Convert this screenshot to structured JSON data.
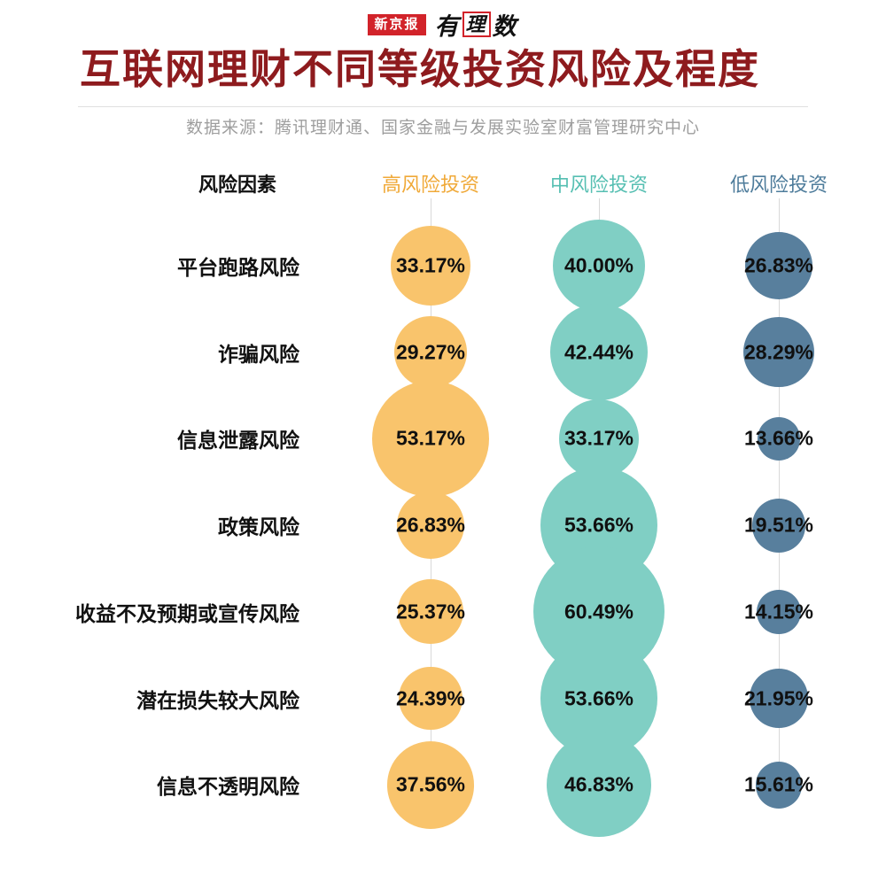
{
  "brand": {
    "logo_left": "新京报",
    "logo_right_1": "有",
    "logo_right_2": "理",
    "logo_right_3": "数"
  },
  "header": {
    "title": "互联网理财不同等级投资风险及程度",
    "source": "数据来源：腾讯理财通、国家金融与发展实验室财富管理研究中心"
  },
  "colors": {
    "title": "#8E1B1E",
    "brand_red": "#D2232A",
    "source_text": "#9E9E9E",
    "divider": "#E0E0E0",
    "column_line": "#D9D9D9",
    "label_text": "#111111",
    "value_text": "#101010"
  },
  "chart_data": {
    "type": "scatter",
    "subtype": "bubble-matrix",
    "row_header": "风险因素",
    "value_format": "percent",
    "legend_position": "top",
    "grid": "vertical-guides",
    "columns": [
      {
        "label": "高风险投资",
        "bubble_color": "#F9C46C",
        "header_color": "#F0A938"
      },
      {
        "label": "中风险投资",
        "bubble_color": "#80CFC4",
        "header_color": "#56BFB2"
      },
      {
        "label": "低风险投资",
        "bubble_color": "#587F9D",
        "header_color": "#4E7C9B"
      }
    ],
    "rows": [
      {
        "label": "平台跑路风险",
        "values": [
          33.17,
          40.0,
          26.83
        ]
      },
      {
        "label": "诈骗风险",
        "values": [
          29.27,
          42.44,
          28.29
        ]
      },
      {
        "label": "信息泄露风险",
        "values": [
          53.17,
          33.17,
          13.66
        ]
      },
      {
        "label": "政策风险",
        "values": [
          26.83,
          53.66,
          19.51
        ]
      },
      {
        "label": "收益不及预期或宣传风险",
        "values": [
          25.37,
          60.49,
          14.15
        ]
      },
      {
        "label": "潜在损失较大风险",
        "values": [
          24.39,
          53.66,
          21.95
        ]
      },
      {
        "label": "信息不透明风险",
        "values": [
          37.56,
          46.83,
          15.61
        ]
      }
    ]
  }
}
